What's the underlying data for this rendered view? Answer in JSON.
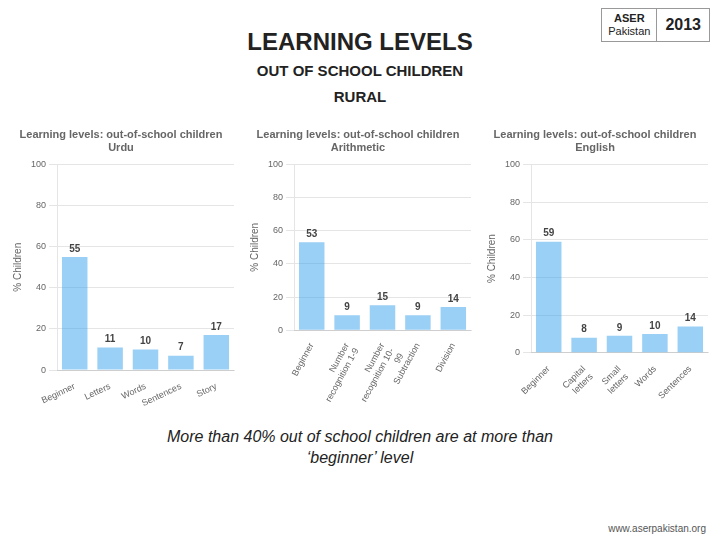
{
  "title": "LEARNING LEVELS",
  "subtitle": [
    "OUT OF SCHOOL CHILDREN",
    "RURAL"
  ],
  "annotations": [
    "ASER",
    "Pakistan",
    "2013",
    "More than 40% out of school children are at more than\n‘beginner’ level",
    "www.aserpakistan.org"
  ],
  "chart_data": [
    {
      "type": "bar",
      "title": "Learning levels: out-of-school children\nUrdu",
      "categories": [
        "Beginner",
        "Letters",
        "Words",
        "Sentences",
        "Story"
      ],
      "values": [
        55,
        11,
        10,
        7,
        17
      ],
      "ylabel": "% Children",
      "ylim": [
        0,
        100
      ],
      "yticks": [
        0,
        20,
        40,
        60,
        80,
        100
      ],
      "grid": true,
      "data_labels": true
    },
    {
      "type": "bar",
      "title": "Learning levels: out-of-school children Arithmetic",
      "categories": [
        "Beginner",
        "Number\nrecognition 1-9",
        "Number\nrecognition 10-\n99",
        "Subtraction",
        "Division"
      ],
      "values": [
        53,
        9,
        15,
        9,
        14
      ],
      "ylabel": "% Children",
      "ylim": [
        0,
        100
      ],
      "yticks": [
        0,
        20,
        40,
        60,
        80,
        100
      ],
      "grid": true,
      "data_labels": true
    },
    {
      "type": "bar",
      "title": "Learning levels: out-of-school children\nEnglish",
      "categories": [
        "Beginner",
        "Capital\nletters",
        "Small\nletters",
        "Words",
        "Sentences"
      ],
      "values": [
        59,
        8,
        9,
        10,
        14
      ],
      "ylabel": "% Children",
      "ylim": [
        0,
        100
      ],
      "yticks": [
        0,
        20,
        40,
        60,
        80,
        100
      ],
      "grid": true,
      "data_labels": true
    }
  ]
}
